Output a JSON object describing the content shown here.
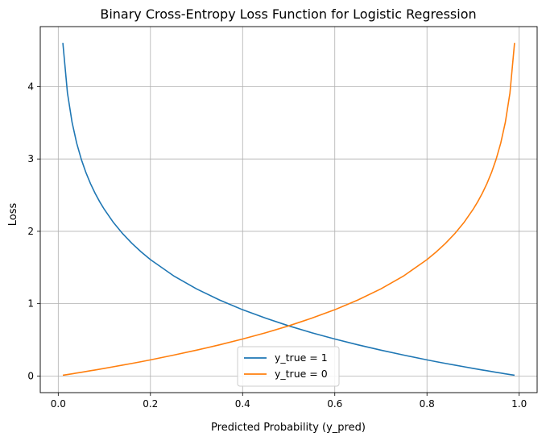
{
  "chart_data": {
    "type": "line",
    "title": "Binary Cross-Entropy Loss Function for Logistic Regression",
    "xlabel": "Predicted Probability (y_pred)",
    "ylabel": "Loss",
    "xlim": [
      -0.039,
      1.039
    ],
    "ylim": [
      -0.23,
      4.83
    ],
    "xticks": [
      0.0,
      0.2,
      0.4,
      0.6,
      0.8,
      1.0
    ],
    "xtick_labels": [
      "0.0",
      "0.2",
      "0.4",
      "0.6",
      "0.8",
      "1.0"
    ],
    "yticks": [
      0,
      1,
      2,
      3,
      4
    ],
    "ytick_labels": [
      "0",
      "1",
      "2",
      "3",
      "4"
    ],
    "grid": true,
    "legend_position": "bottom-center",
    "x": [
      0.01,
      0.02,
      0.03,
      0.04,
      0.05,
      0.06,
      0.07,
      0.08,
      0.09,
      0.1,
      0.12,
      0.14,
      0.16,
      0.18,
      0.2,
      0.25,
      0.3,
      0.35,
      0.4,
      0.45,
      0.5,
      0.55,
      0.6,
      0.65,
      0.7,
      0.75,
      0.8,
      0.82,
      0.84,
      0.86,
      0.88,
      0.9,
      0.91,
      0.92,
      0.93,
      0.94,
      0.95,
      0.96,
      0.97,
      0.98,
      0.99
    ],
    "series": [
      {
        "name": "y_true = 1",
        "color": "#1f77b4",
        "values": [
          4.605,
          3.912,
          3.507,
          3.219,
          2.996,
          2.813,
          2.659,
          2.526,
          2.408,
          2.303,
          2.12,
          1.966,
          1.833,
          1.715,
          1.609,
          1.386,
          1.204,
          1.05,
          0.916,
          0.799,
          0.693,
          0.598,
          0.511,
          0.431,
          0.357,
          0.288,
          0.223,
          0.198,
          0.174,
          0.151,
          0.128,
          0.105,
          0.094,
          0.083,
          0.073,
          0.062,
          0.051,
          0.041,
          0.03,
          0.02,
          0.01
        ]
      },
      {
        "name": "y_true = 0",
        "color": "#ff7f0e",
        "values": [
          0.01,
          0.02,
          0.03,
          0.041,
          0.051,
          0.062,
          0.073,
          0.083,
          0.094,
          0.105,
          0.128,
          0.151,
          0.174,
          0.198,
          0.223,
          0.288,
          0.357,
          0.431,
          0.511,
          0.598,
          0.693,
          0.799,
          0.916,
          1.05,
          1.204,
          1.386,
          1.609,
          1.715,
          1.833,
          1.966,
          2.12,
          2.303,
          2.408,
          2.526,
          2.659,
          2.813,
          2.996,
          3.219,
          3.507,
          3.912,
          4.605
        ]
      }
    ]
  }
}
